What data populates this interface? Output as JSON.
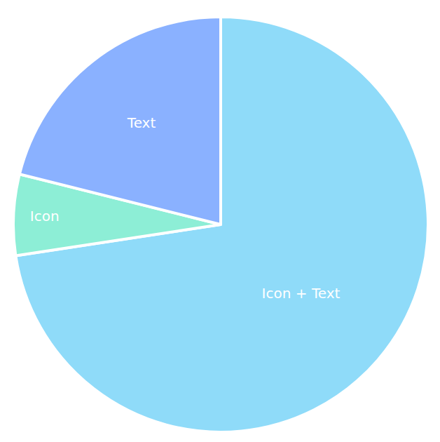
{
  "chart_data": {
    "type": "pie",
    "categories": [
      "Icon + Text",
      "Icon",
      "Text"
    ],
    "values": [
      72.6,
      6.3,
      21.1
    ],
    "colors": [
      "#8fdbf9",
      "#8deed6",
      "#8ab1ff"
    ]
  }
}
